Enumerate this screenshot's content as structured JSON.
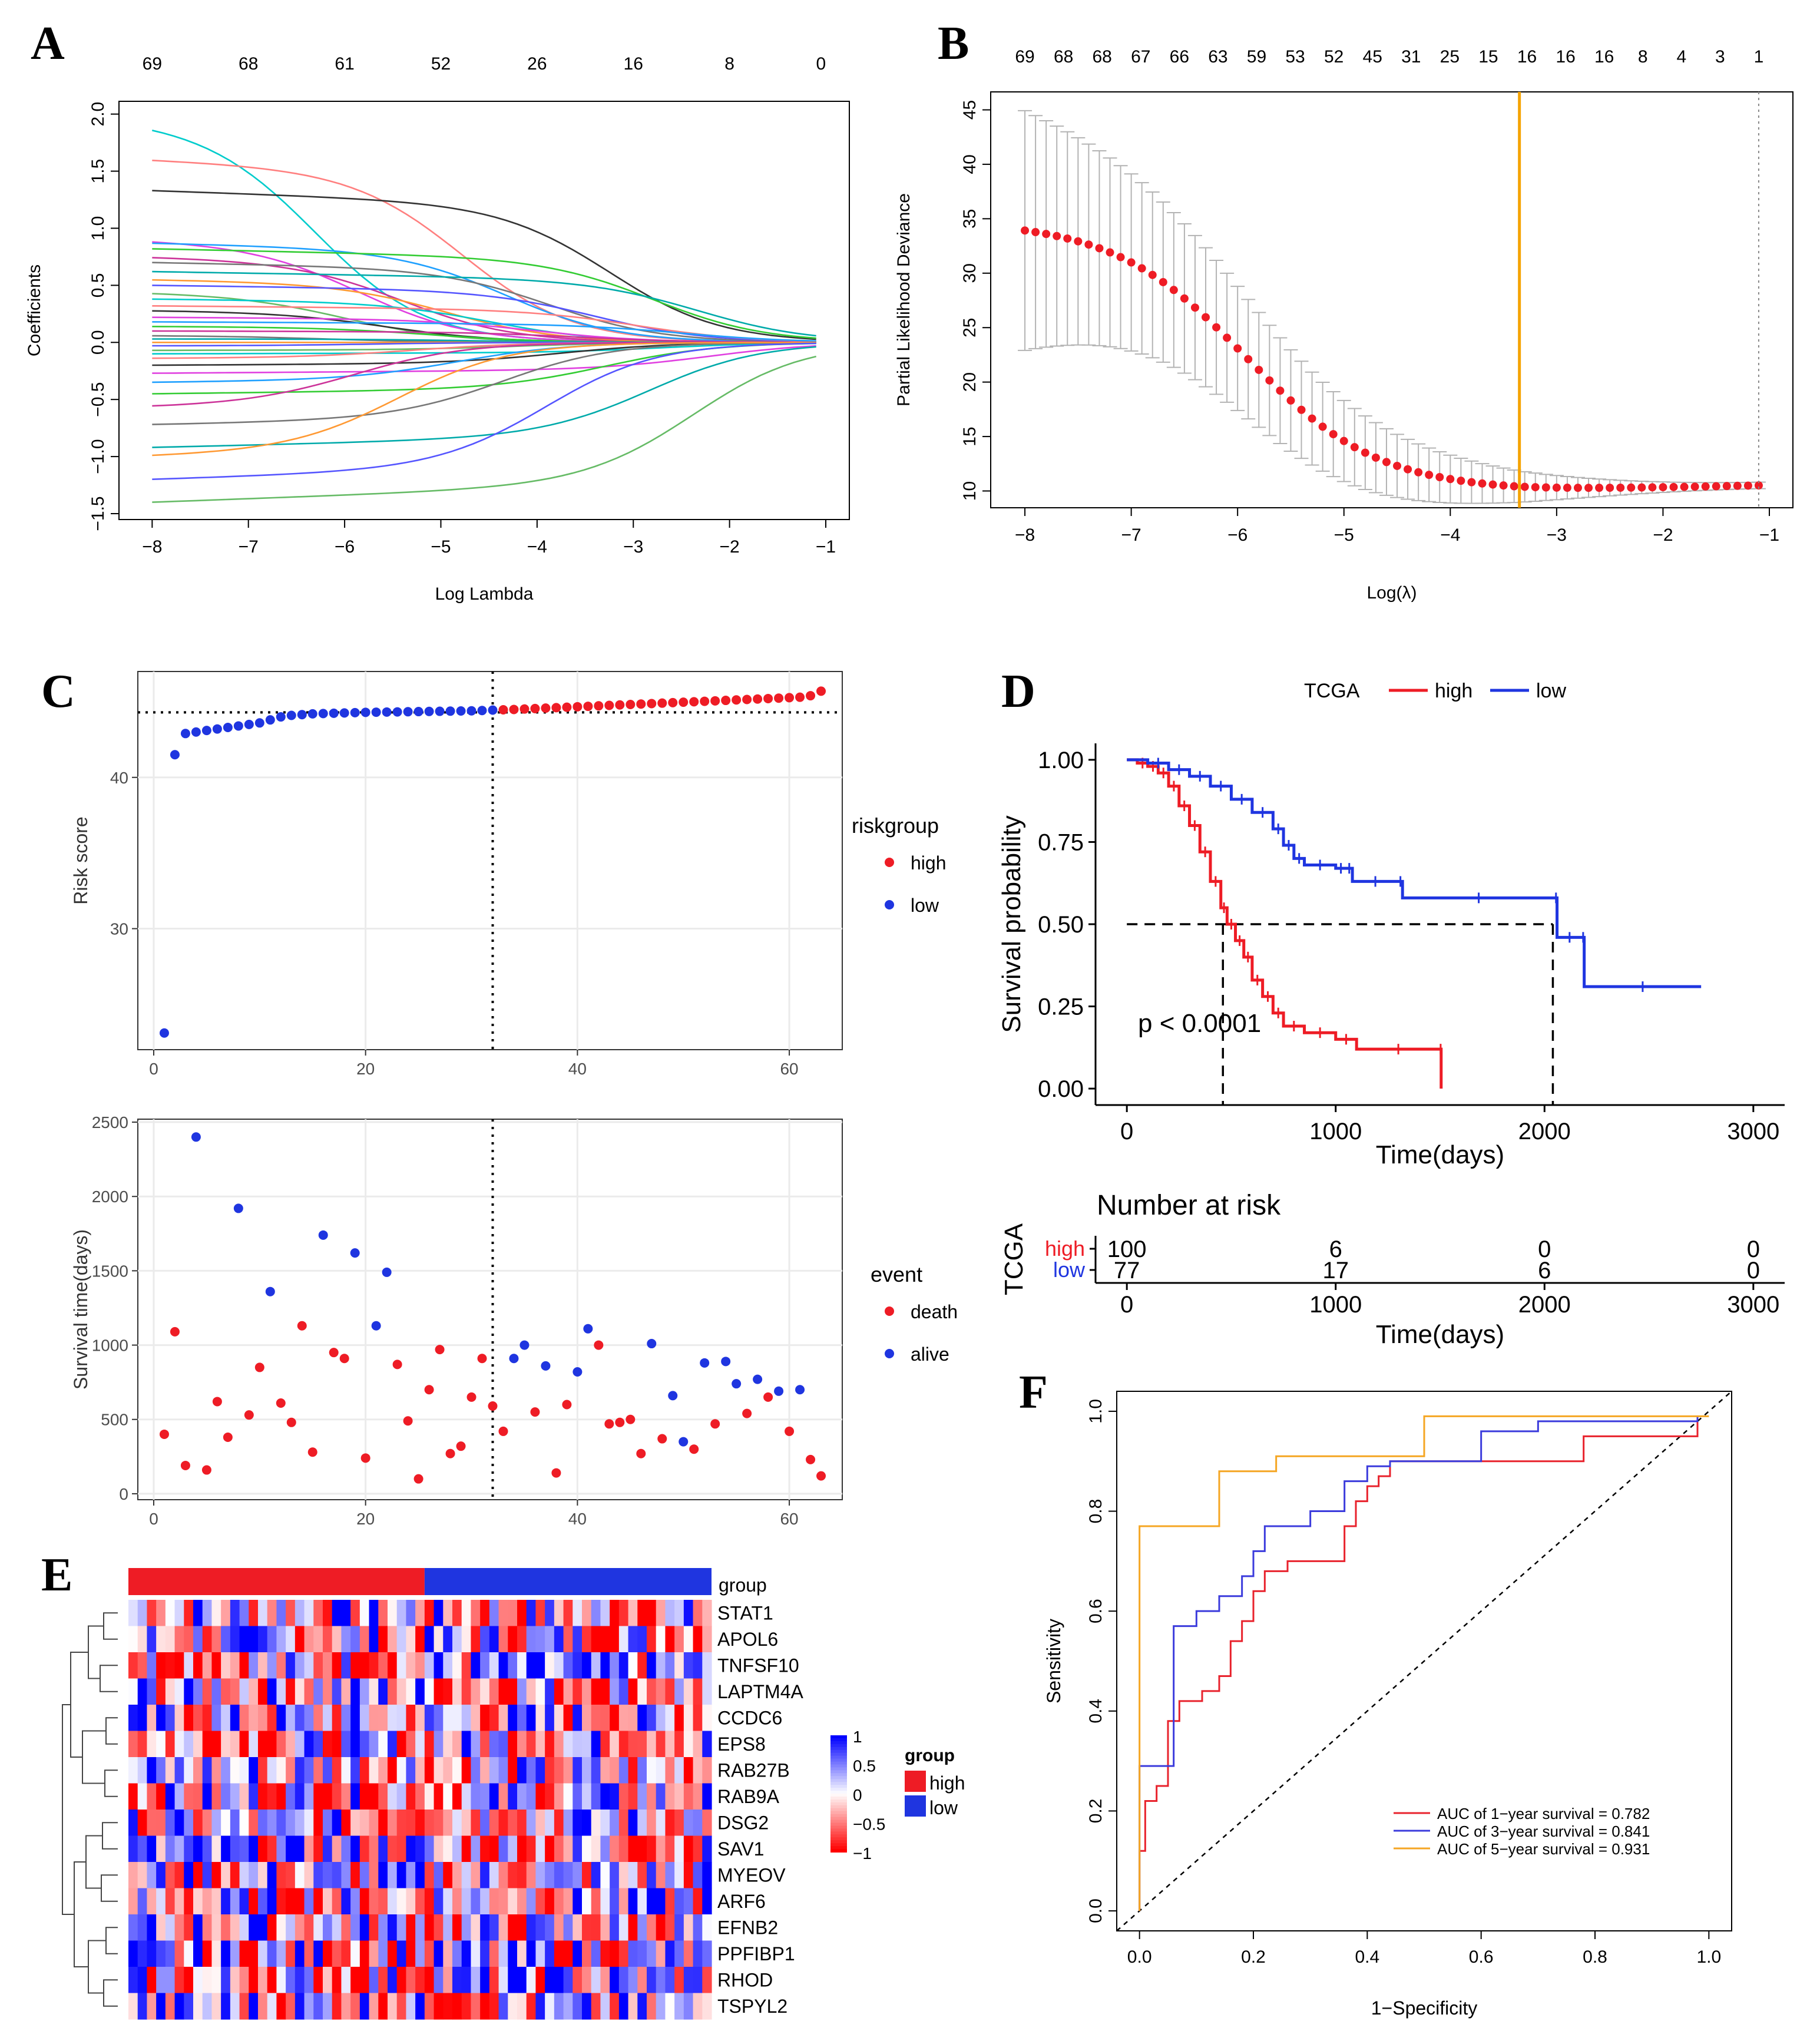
{
  "colors": {
    "high": "#ee1c25",
    "low": "#1f35e0",
    "optimal": "#f5a300",
    "roc1": "#e8222c",
    "roc3": "#3b3bdc",
    "roc5": "#f5a623",
    "axis": "#333333",
    "grid": "#ebebeb",
    "errorbar": "#b3b3b3"
  },
  "panels": {
    "A": {
      "letter": "A"
    },
    "B": {
      "letter": "B"
    },
    "C": {
      "letter": "C"
    },
    "D": {
      "letter": "D"
    },
    "E": {
      "letter": "E"
    },
    "F": {
      "letter": "F"
    }
  },
  "chart_data": [
    {
      "id": "A",
      "type": "line",
      "xlabel": "Log Lambda",
      "ylabel": "Coefficients",
      "xlim": [
        -8.1,
        -1
      ],
      "ylim": [
        -1.5,
        2.05
      ],
      "x_ticks": [
        "-8",
        "-7",
        "-6",
        "-5",
        "-4",
        "-3",
        "-2",
        "-1"
      ],
      "y_ticks": [
        "-1.5",
        "-1.0",
        "-0.5",
        "0.0",
        "0.5",
        "1.0",
        "1.5",
        "2.0"
      ],
      "top_ticks": [
        "69",
        "68",
        "61",
        "52",
        "26",
        "16",
        "8",
        "0"
      ],
      "series_start_values": [
        1.95,
        1.6,
        1.33,
        0.9,
        0.87,
        0.82,
        0.75,
        0.7,
        0.62,
        0.55,
        0.5,
        0.44,
        0.38,
        0.32,
        0.28,
        0.22,
        0.18,
        0.14,
        0.1,
        0.06,
        0.03,
        0.0,
        -0.03,
        -0.07,
        -0.1,
        -0.14,
        -0.2,
        -0.27,
        -0.35,
        -0.45,
        -0.57,
        -0.72,
        -0.92,
        -1.0,
        -1.2,
        -1.4
      ]
    },
    {
      "id": "B",
      "type": "scatter",
      "xlabel": "Log(λ)",
      "ylabel": "Partial Likelihood Deviance",
      "xlim": [
        -8.1,
        -1
      ],
      "ylim": [
        9,
        46
      ],
      "x_ticks": [
        "-8",
        "-7",
        "-6",
        "-5",
        "-4",
        "-3",
        "-2",
        "-1"
      ],
      "y_ticks": [
        "10",
        "15",
        "20",
        "25",
        "30",
        "35",
        "40",
        "45"
      ],
      "top_ticks": [
        "69",
        "68",
        "68",
        "67",
        "66",
        "63",
        "59",
        "53",
        "52",
        "45",
        "31",
        "25",
        "15",
        "16",
        "16",
        "16",
        "8",
        "4",
        "3",
        "1"
      ],
      "lambda_min_log": -3.35,
      "lambda_1se_log": -1.1,
      "curve": {
        "start": 34.8,
        "end": 10.5,
        "min": 10.0,
        "n_points": 70
      }
    },
    {
      "id": "C-risk",
      "type": "scatter",
      "xlabel": "",
      "ylabel": "Risk score",
      "xlim": [
        -1.5,
        65
      ],
      "ylim": [
        22,
        47
      ],
      "x_ticks": [
        "0",
        "20",
        "40",
        "60"
      ],
      "y_ticks": [
        "30",
        "40"
      ],
      "cutoff_x": 32,
      "cutoff_y": 44.3,
      "legend_title": "riskgroup",
      "legend": [
        "high",
        "low"
      ],
      "values": [
        23.1,
        41.5,
        42.9,
        43.0,
        43.1,
        43.2,
        43.3,
        43.4,
        43.5,
        43.6,
        43.8,
        44.0,
        44.1,
        44.15,
        44.2,
        44.22,
        44.24,
        44.26,
        44.28,
        44.3,
        44.31,
        44.32,
        44.33,
        44.34,
        44.35,
        44.36,
        44.37,
        44.38,
        44.39,
        44.4,
        44.42,
        44.45,
        44.47,
        44.49,
        44.52,
        44.55,
        44.58,
        44.61,
        44.64,
        44.67,
        44.7,
        44.73,
        44.76,
        44.79,
        44.82,
        44.85,
        44.88,
        44.91,
        44.94,
        44.97,
        45.0,
        45.03,
        45.06,
        45.09,
        45.12,
        45.15,
        45.18,
        45.21,
        45.24,
        45.27,
        45.3,
        45.4,
        45.7
      ]
    },
    {
      "id": "C-survival",
      "type": "scatter",
      "xlabel": "",
      "ylabel": "Survival time(days)",
      "xlim": [
        -1.5,
        65
      ],
      "ylim": [
        -40,
        2520
      ],
      "x_ticks": [
        "0",
        "20",
        "40",
        "60"
      ],
      "y_ticks": [
        "0",
        "500",
        "1000",
        "1500",
        "2000",
        "2500"
      ],
      "cutoff_x": 32,
      "legend_title": "event",
      "legend": [
        "death",
        "alive"
      ],
      "points": [
        [
          1,
          400,
          "death"
        ],
        [
          2,
          1090,
          "death"
        ],
        [
          3,
          190,
          "death"
        ],
        [
          4,
          2400,
          "alive"
        ],
        [
          5,
          160,
          "death"
        ],
        [
          6,
          620,
          "death"
        ],
        [
          7,
          380,
          "death"
        ],
        [
          8,
          1920,
          "alive"
        ],
        [
          9,
          530,
          "death"
        ],
        [
          10,
          850,
          "death"
        ],
        [
          11,
          1360,
          "alive"
        ],
        [
          12,
          610,
          "death"
        ],
        [
          13,
          480,
          "death"
        ],
        [
          14,
          1130,
          "death"
        ],
        [
          15,
          280,
          "death"
        ],
        [
          16,
          1740,
          "alive"
        ],
        [
          17,
          950,
          "death"
        ],
        [
          18,
          910,
          "death"
        ],
        [
          19,
          1620,
          "alive"
        ],
        [
          20,
          240,
          "death"
        ],
        [
          21,
          1130,
          "alive"
        ],
        [
          22,
          1490,
          "alive"
        ],
        [
          23,
          870,
          "death"
        ],
        [
          24,
          490,
          "death"
        ],
        [
          25,
          100,
          "death"
        ],
        [
          26,
          700,
          "death"
        ],
        [
          27,
          970,
          "death"
        ],
        [
          28,
          270,
          "death"
        ],
        [
          29,
          320,
          "death"
        ],
        [
          30,
          650,
          "death"
        ],
        [
          31,
          910,
          "death"
        ],
        [
          32,
          590,
          "death"
        ],
        [
          33,
          420,
          "death"
        ],
        [
          34,
          910,
          "alive"
        ],
        [
          35,
          1000,
          "alive"
        ],
        [
          36,
          550,
          "death"
        ],
        [
          37,
          860,
          "alive"
        ],
        [
          38,
          140,
          "death"
        ],
        [
          39,
          600,
          "death"
        ],
        [
          40,
          820,
          "alive"
        ],
        [
          41,
          1110,
          "alive"
        ],
        [
          42,
          1000,
          "death"
        ],
        [
          43,
          470,
          "death"
        ],
        [
          44,
          480,
          "death"
        ],
        [
          45,
          500,
          "death"
        ],
        [
          46,
          270,
          "death"
        ],
        [
          47,
          1010,
          "alive"
        ],
        [
          48,
          370,
          "death"
        ],
        [
          49,
          660,
          "alive"
        ],
        [
          50,
          350,
          "alive"
        ],
        [
          51,
          300,
          "death"
        ],
        [
          52,
          880,
          "alive"
        ],
        [
          53,
          470,
          "death"
        ],
        [
          54,
          890,
          "alive"
        ],
        [
          55,
          740,
          "alive"
        ],
        [
          56,
          540,
          "death"
        ],
        [
          57,
          770,
          "alive"
        ],
        [
          58,
          650,
          "death"
        ],
        [
          59,
          690,
          "alive"
        ],
        [
          60,
          420,
          "death"
        ],
        [
          61,
          700,
          "alive"
        ],
        [
          62,
          230,
          "death"
        ],
        [
          63,
          120,
          "death"
        ]
      ]
    },
    {
      "id": "D",
      "type": "line",
      "xlabel": "Time(days)",
      "ylabel": "Survival probability",
      "xlim": [
        -150,
        3150
      ],
      "ylim": [
        -0.05,
        1.05
      ],
      "x_ticks": [
        "0",
        "1000",
        "2000",
        "3000"
      ],
      "y_ticks": [
        "0.00",
        "0.25",
        "0.50",
        "0.75",
        "1.00"
      ],
      "legend_title": "TCGA",
      "legend": [
        "high",
        "low"
      ],
      "pvalue": "p < 0.0001",
      "median_high": 460,
      "median_low": 2040,
      "high": [
        [
          0,
          1.0
        ],
        [
          50,
          0.99
        ],
        [
          100,
          0.98
        ],
        [
          150,
          0.96
        ],
        [
          200,
          0.92
        ],
        [
          250,
          0.86
        ],
        [
          300,
          0.8
        ],
        [
          350,
          0.72
        ],
        [
          400,
          0.63
        ],
        [
          450,
          0.55
        ],
        [
          480,
          0.5
        ],
        [
          520,
          0.45
        ],
        [
          560,
          0.4
        ],
        [
          600,
          0.33
        ],
        [
          650,
          0.28
        ],
        [
          700,
          0.23
        ],
        [
          750,
          0.19
        ],
        [
          850,
          0.17
        ],
        [
          1000,
          0.15
        ],
        [
          1100,
          0.12
        ],
        [
          1500,
          0.12
        ],
        [
          1505,
          0.0
        ]
      ],
      "low": [
        [
          0,
          1.0
        ],
        [
          100,
          0.99
        ],
        [
          200,
          0.97
        ],
        [
          300,
          0.95
        ],
        [
          400,
          0.92
        ],
        [
          500,
          0.88
        ],
        [
          600,
          0.84
        ],
        [
          700,
          0.79
        ],
        [
          750,
          0.74
        ],
        [
          800,
          0.7
        ],
        [
          850,
          0.68
        ],
        [
          1000,
          0.67
        ],
        [
          1050,
          0.67
        ],
        [
          1080,
          0.63
        ],
        [
          1300,
          0.63
        ],
        [
          1320,
          0.58
        ],
        [
          2050,
          0.58
        ],
        [
          2060,
          0.46
        ],
        [
          2180,
          0.46
        ],
        [
          2190,
          0.31
        ],
        [
          2750,
          0.31
        ]
      ],
      "risk_table": {
        "title": "Number at risk",
        "strata_label": "TCGA",
        "rows": [
          {
            "name": "high",
            "counts": [
              "100",
              "6",
              "0",
              "0"
            ]
          },
          {
            "name": "low",
            "counts": [
              "77",
              "17",
              "6",
              "0"
            ]
          }
        ],
        "xlabel": "Time(days)",
        "x_ticks": [
          "0",
          "1000",
          "2000",
          "3000"
        ]
      }
    },
    {
      "id": "E",
      "type": "heatmap",
      "rows": [
        "STAT1",
        "APOL6",
        "TNFSF10",
        "LAPTM4A",
        "CCDC6",
        "EPS8",
        "RAB27B",
        "RAB9A",
        "DSG2",
        "SAV1",
        "MYEOV",
        "ARF6",
        "EFNB2",
        "PPFIBP1",
        "RHOD",
        "TSPYL2"
      ],
      "n_columns": 63,
      "n_high": 32,
      "annotation_label": "group",
      "scale_ticks": [
        "1",
        "0.5",
        "0",
        "−0.5",
        "−1"
      ],
      "legend_title": "group",
      "legend": [
        "high",
        "low"
      ]
    },
    {
      "id": "F",
      "type": "line",
      "xlabel": "1−Specificity",
      "ylabel": "Sensitivity",
      "xlim": [
        -0.04,
        1.04
      ],
      "ylim": [
        -0.04,
        1.04
      ],
      "x_ticks": [
        "0.0",
        "0.2",
        "0.4",
        "0.6",
        "0.8",
        "1.0"
      ],
      "y_ticks": [
        "0.0",
        "0.2",
        "0.4",
        "0.6",
        "0.8",
        "1.0"
      ],
      "series": [
        {
          "name": "AUC of 1−year survival = 0.782",
          "color_key": "roc1",
          "points": [
            [
              0,
              0
            ],
            [
              0,
              0.12
            ],
            [
              0.01,
              0.22
            ],
            [
              0.03,
              0.25
            ],
            [
              0.05,
              0.38
            ],
            [
              0.07,
              0.42
            ],
            [
              0.11,
              0.44
            ],
            [
              0.14,
              0.47
            ],
            [
              0.16,
              0.54
            ],
            [
              0.18,
              0.58
            ],
            [
              0.2,
              0.64
            ],
            [
              0.22,
              0.68
            ],
            [
              0.26,
              0.7
            ],
            [
              0.33,
              0.7
            ],
            [
              0.36,
              0.77
            ],
            [
              0.38,
              0.82
            ],
            [
              0.4,
              0.85
            ],
            [
              0.42,
              0.87
            ],
            [
              0.44,
              0.9
            ],
            [
              0.6,
              0.9
            ],
            [
              0.78,
              0.95
            ],
            [
              0.98,
              0.98
            ]
          ]
        },
        {
          "name": "AUC of 3−year survival = 0.841",
          "color_key": "roc3",
          "points": [
            [
              0,
              0
            ],
            [
              0,
              0.29
            ],
            [
              0.05,
              0.29
            ],
            [
              0.06,
              0.57
            ],
            [
              0.1,
              0.6
            ],
            [
              0.14,
              0.63
            ],
            [
              0.18,
              0.67
            ],
            [
              0.2,
              0.72
            ],
            [
              0.22,
              0.77
            ],
            [
              0.3,
              0.8
            ],
            [
              0.36,
              0.86
            ],
            [
              0.4,
              0.89
            ],
            [
              0.44,
              0.9
            ],
            [
              0.6,
              0.96
            ],
            [
              0.7,
              0.98
            ],
            [
              0.98,
              0.99
            ]
          ]
        },
        {
          "name": "AUC of 5−year survival = 0.931",
          "color_key": "roc5",
          "points": [
            [
              0,
              0
            ],
            [
              0,
              0.77
            ],
            [
              0.13,
              0.77
            ],
            [
              0.14,
              0.88
            ],
            [
              0.22,
              0.88
            ],
            [
              0.24,
              0.91
            ],
            [
              0.48,
              0.91
            ],
            [
              0.5,
              0.99
            ],
            [
              1.0,
              0.99
            ]
          ]
        }
      ]
    }
  ]
}
